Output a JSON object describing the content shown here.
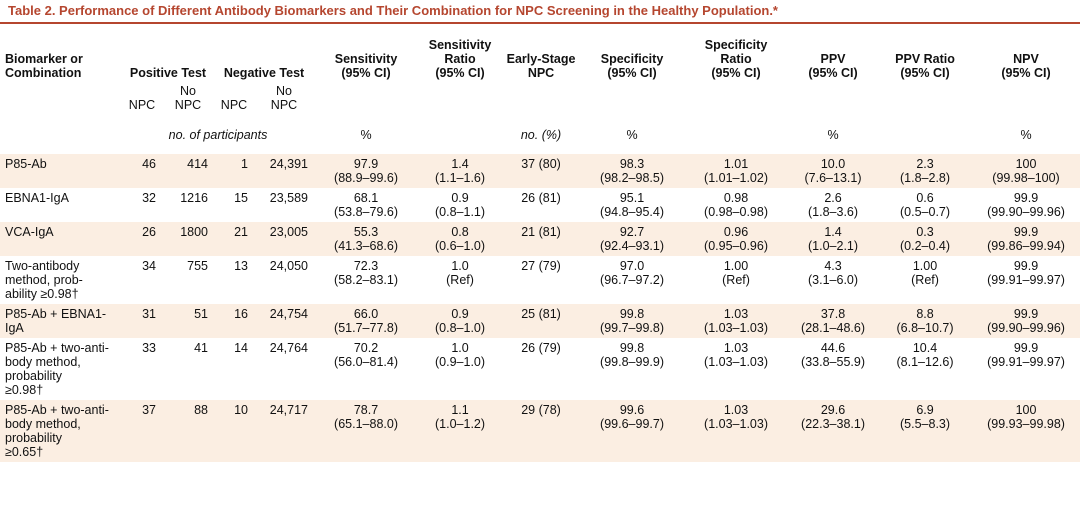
{
  "title": "Table 2. Performance of Different Antibody Biomarkers and Their Combination for NPC Screening in the Healthy Population.*",
  "headers": {
    "biomarker": [
      "Biomarker or",
      "Combination"
    ],
    "positive_test": "Positive Test",
    "negative_test": "Negative Test",
    "sensitivity": [
      "Sensitivity",
      "(95% CI)"
    ],
    "sensitivity_ratio": [
      "Sensitivity",
      "Ratio",
      "(95% CI)"
    ],
    "early_stage": [
      "Early-Stage",
      "NPC"
    ],
    "specificity": [
      "Specificity",
      "(95% CI)"
    ],
    "specificity_ratio": [
      "Specificity",
      "Ratio",
      "(95% CI)"
    ],
    "ppv": [
      "PPV",
      "(95% CI)"
    ],
    "ppv_ratio": [
      "PPV Ratio",
      "(95% CI)"
    ],
    "npv": [
      "NPV",
      "(95% CI)"
    ]
  },
  "subheaders": {
    "npc": "NPC",
    "no": "No",
    "no_npc": "NPC"
  },
  "units": {
    "participants": "no. of participants",
    "percent": "%",
    "no_percent": "no. (%)"
  },
  "rows": [
    {
      "name": [
        "P85-Ab"
      ],
      "pos_npc": "46",
      "pos_no": "414",
      "neg_npc": "1",
      "neg_no": "24,391",
      "sens": [
        "97.9",
        "(88.9–99.6)"
      ],
      "sens_ratio": [
        "1.4",
        "(1.1–1.6)"
      ],
      "early": "37 (80)",
      "spec": [
        "98.3",
        "(98.2–98.5)"
      ],
      "spec_ratio": [
        "1.01",
        "(1.01–1.02)"
      ],
      "ppv": [
        "10.0",
        "(7.6–13.1)"
      ],
      "ppv_ratio": [
        "2.3",
        "(1.8–2.8)"
      ],
      "npv": [
        "100",
        "(99.98–100)"
      ]
    },
    {
      "name": [
        "EBNA1-IgA"
      ],
      "pos_npc": "32",
      "pos_no": "1216",
      "neg_npc": "15",
      "neg_no": "23,589",
      "sens": [
        "68.1",
        "(53.8–79.6)"
      ],
      "sens_ratio": [
        "0.9",
        "(0.8–1.1)"
      ],
      "early": "26 (81)",
      "spec": [
        "95.1",
        "(94.8–95.4)"
      ],
      "spec_ratio": [
        "0.98",
        "(0.98–0.98)"
      ],
      "ppv": [
        "2.6",
        "(1.8–3.6)"
      ],
      "ppv_ratio": [
        "0.6",
        "(0.5–0.7)"
      ],
      "npv": [
        "99.9",
        "(99.90–99.96)"
      ]
    },
    {
      "name": [
        "VCA-IgA"
      ],
      "pos_npc": "26",
      "pos_no": "1800",
      "neg_npc": "21",
      "neg_no": "23,005",
      "sens": [
        "55.3",
        "(41.3–68.6)"
      ],
      "sens_ratio": [
        "0.8",
        "(0.6–1.0)"
      ],
      "early": "21 (81)",
      "spec": [
        "92.7",
        "(92.4–93.1)"
      ],
      "spec_ratio": [
        "0.96",
        "(0.95–0.96)"
      ],
      "ppv": [
        "1.4",
        "(1.0–2.1)"
      ],
      "ppv_ratio": [
        "0.3",
        "(0.2–0.4)"
      ],
      "npv": [
        "99.9",
        "(99.86–99.94)"
      ]
    },
    {
      "name": [
        "Two-antibody",
        "method, prob-",
        "ability ≥0.98†"
      ],
      "pos_npc": "34",
      "pos_no": "755",
      "neg_npc": "13",
      "neg_no": "24,050",
      "sens": [
        "72.3",
        "(58.2–83.1)"
      ],
      "sens_ratio": [
        "1.0",
        "(Ref)"
      ],
      "early": "27 (79)",
      "spec": [
        "97.0",
        "(96.7–97.2)"
      ],
      "spec_ratio": [
        "1.00",
        "(Ref)"
      ],
      "ppv": [
        "4.3",
        "(3.1–6.0)"
      ],
      "ppv_ratio": [
        "1.00",
        "(Ref)"
      ],
      "npv": [
        "99.9",
        "(99.91–99.97)"
      ]
    },
    {
      "name": [
        "P85-Ab + EBNA1-",
        "IgA"
      ],
      "pos_npc": "31",
      "pos_no": "51",
      "neg_npc": "16",
      "neg_no": "24,754",
      "sens": [
        "66.0",
        "(51.7–77.8)"
      ],
      "sens_ratio": [
        "0.9",
        "(0.8–1.0)"
      ],
      "early": "25 (81)",
      "spec": [
        "99.8",
        "(99.7–99.8)"
      ],
      "spec_ratio": [
        "1.03",
        "(1.03–1.03)"
      ],
      "ppv": [
        "37.8",
        "(28.1–48.6)"
      ],
      "ppv_ratio": [
        "8.8",
        "(6.8–10.7)"
      ],
      "npv": [
        "99.9",
        "(99.90–99.96)"
      ]
    },
    {
      "name": [
        "P85-Ab + two-anti-",
        "body method,",
        "probability",
        "≥0.98†"
      ],
      "pos_npc": "33",
      "pos_no": "41",
      "neg_npc": "14",
      "neg_no": "24,764",
      "sens": [
        "70.2",
        "(56.0–81.4)"
      ],
      "sens_ratio": [
        "1.0",
        "(0.9–1.0)"
      ],
      "early": "26 (79)",
      "spec": [
        "99.8",
        "(99.8–99.9)"
      ],
      "spec_ratio": [
        "1.03",
        "(1.03–1.03)"
      ],
      "ppv": [
        "44.6",
        "(33.8–55.9)"
      ],
      "ppv_ratio": [
        "10.4",
        "(8.1–12.6)"
      ],
      "npv": [
        "99.9",
        "(99.91–99.97)"
      ]
    },
    {
      "name": [
        "P85-Ab + two-anti-",
        "body method,",
        "probability",
        "≥0.65†"
      ],
      "pos_npc": "37",
      "pos_no": "88",
      "neg_npc": "10",
      "neg_no": "24,717",
      "sens": [
        "78.7",
        "(65.1–88.0)"
      ],
      "sens_ratio": [
        "1.1",
        "(1.0–1.2)"
      ],
      "early": "29 (78)",
      "spec": [
        "99.6",
        "(99.6–99.7)"
      ],
      "spec_ratio": [
        "1.03",
        "(1.03–1.03)"
      ],
      "ppv": [
        "29.6",
        "(22.3–38.1)"
      ],
      "ppv_ratio": [
        "6.9",
        "(5.5–8.3)"
      ],
      "npv": [
        "100",
        "(99.93–99.98)"
      ]
    }
  ],
  "colors": {
    "accent": "#b5462f",
    "row_shade": "#fbeee2"
  }
}
